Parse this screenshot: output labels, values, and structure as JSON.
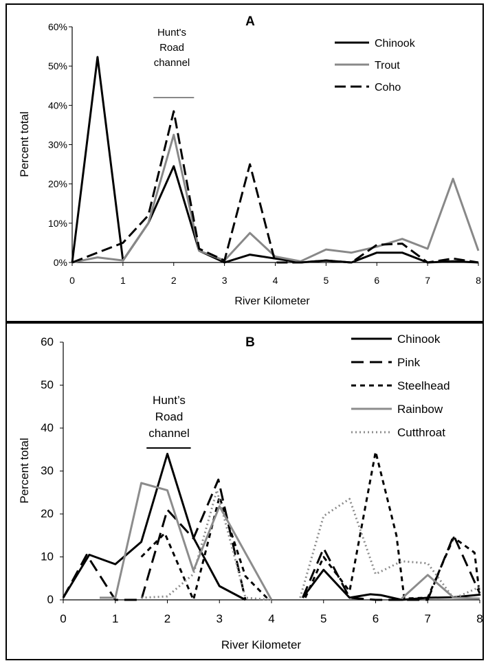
{
  "chart_data": [
    {
      "panel": "A",
      "type": "line",
      "xlabel": "River Kilometer",
      "ylabel": "Percent total",
      "xlim": [
        0,
        8
      ],
      "ylim": [
        0,
        60
      ],
      "xticks": [
        "0",
        "1",
        "2",
        "3",
        "4",
        "5",
        "6",
        "7",
        "8"
      ],
      "yticks": [
        "0%",
        "10%",
        "20%",
        "30%",
        "40%",
        "50%",
        "60%"
      ],
      "legend_position": "top-right",
      "annotation": [
        "Hunt's",
        "Road",
        "channel"
      ],
      "annotation_range": [
        1.6,
        2.4
      ],
      "series": [
        {
          "name": "Chinook",
          "color": "#000000",
          "style": "solid",
          "points": [
            [
              0,
              0
            ],
            [
              0.5,
              52.3
            ],
            [
              1,
              0.5
            ],
            [
              1.5,
              10
            ],
            [
              2,
              24.5
            ],
            [
              2.5,
              3
            ],
            [
              3,
              0
            ],
            [
              3.5,
              2
            ],
            [
              4,
              1
            ],
            [
              4.5,
              0
            ],
            [
              5,
              0.5
            ],
            [
              5.5,
              0
            ],
            [
              6,
              2.5
            ],
            [
              6.5,
              2.5
            ],
            [
              7,
              0
            ],
            [
              7.5,
              0.3
            ],
            [
              8,
              0
            ]
          ]
        },
        {
          "name": "Trout",
          "color": "#888888",
          "style": "solid",
          "points": [
            [
              0,
              0
            ],
            [
              0.5,
              1.3
            ],
            [
              1,
              0.5
            ],
            [
              1.5,
              10
            ],
            [
              2,
              32.5
            ],
            [
              2.5,
              3
            ],
            [
              3,
              0.5
            ],
            [
              3.5,
              7.5
            ],
            [
              4,
              1.5
            ],
            [
              4.5,
              0.3
            ],
            [
              5,
              3.3
            ],
            [
              5.5,
              2.5
            ],
            [
              6,
              4
            ],
            [
              6.5,
              6
            ],
            [
              7,
              3.5
            ],
            [
              7.5,
              21.3
            ],
            [
              8,
              3
            ]
          ]
        },
        {
          "name": "Coho",
          "color": "#000000",
          "style": "dash",
          "points": [
            [
              0,
              0
            ],
            [
              0.5,
              2.5
            ],
            [
              1,
              5
            ],
            [
              1.5,
              12
            ],
            [
              2,
              38.5
            ],
            [
              2.5,
              3.5
            ],
            [
              3,
              0.5
            ],
            [
              3.5,
              25
            ],
            [
              4,
              0
            ],
            [
              4.5,
              0
            ],
            [
              5,
              0.5
            ],
            [
              5.5,
              0
            ],
            [
              6,
              4.5
            ],
            [
              6.5,
              4.8
            ],
            [
              7,
              0
            ],
            [
              7.5,
              1
            ],
            [
              8,
              0
            ]
          ]
        }
      ]
    },
    {
      "panel": "B",
      "type": "line",
      "xlabel": "River Kilometer",
      "ylabel": "Percent total",
      "xlim": [
        0,
        8
      ],
      "ylim": [
        0,
        60
      ],
      "xticks": [
        "0",
        "1",
        "2",
        "3",
        "4",
        "5",
        "6",
        "7",
        "8"
      ],
      "yticks": [
        "0",
        "10",
        "20",
        "30",
        "40",
        "50",
        "60"
      ],
      "legend_position": "top-right",
      "annotation": [
        "Hunt’s",
        "Road",
        "channel"
      ],
      "annotation_range": [
        1.6,
        2.45
      ],
      "series": [
        {
          "name": "Chinook",
          "color": "#000000",
          "style": "solid",
          "segments": [
            [
              [
                0,
                0.5
              ],
              [
                0.5,
                10.5
              ],
              [
                1,
                8.3
              ],
              [
                1.5,
                13.5
              ],
              [
                2,
                34
              ],
              [
                2.5,
                14.5
              ],
              [
                3,
                3.2
              ],
              [
                3.5,
                0
              ]
            ],
            [
              [
                4.6,
                0.5
              ],
              [
                5,
                7
              ],
              [
                5.5,
                0.5
              ],
              [
                5.9,
                1.3
              ],
              [
                6.1,
                1.1
              ],
              [
                6.5,
                0
              ],
              [
                7,
                0.5
              ],
              [
                7.5,
                0.6
              ],
              [
                8,
                1.2
              ]
            ]
          ]
        },
        {
          "name": "Pink",
          "color": "#000000",
          "style": "longdash",
          "segments": [
            [
              [
                0,
                0.5
              ],
              [
                0.45,
                10.5
              ],
              [
                1,
                0
              ],
              [
                1.5,
                0
              ],
              [
                2,
                21
              ],
              [
                2.5,
                14.3
              ],
              [
                2.98,
                28
              ],
              [
                3.5,
                0
              ]
            ],
            [
              [
                4.6,
                0.5
              ],
              [
                5,
                12
              ],
              [
                5.5,
                0.5
              ],
              [
                6,
                0
              ],
              [
                6.5,
                0
              ],
              [
                7,
                0
              ],
              [
                7.5,
                15
              ],
              [
                8,
                1.5
              ]
            ]
          ]
        },
        {
          "name": "Steelhead",
          "color": "#000000",
          "style": "shortdash",
          "segments": [
            [
              [
                1.5,
                10
              ],
              [
                1.95,
                15.5
              ],
              [
                2.5,
                0
              ],
              [
                3,
                24
              ],
              [
                3.5,
                5.5
              ],
              [
                3.95,
                0
              ]
            ],
            [
              [
                4.65,
                0.5
              ],
              [
                5,
                10
              ],
              [
                5.5,
                2
              ],
              [
                6,
                34.5
              ],
              [
                6.4,
                15
              ],
              [
                6.55,
                0.3
              ],
              [
                7,
                0.5
              ],
              [
                7.5,
                14.5
              ],
              [
                7.9,
                11
              ],
              [
                8,
                1
              ]
            ]
          ]
        },
        {
          "name": "Rainbow",
          "color": "#8c8c8c",
          "style": "solid",
          "segments": [
            [
              [
                0.7,
                0.5
              ],
              [
                1,
                0.5
              ],
              [
                1.5,
                27.2
              ],
              [
                2,
                25.5
              ],
              [
                2.5,
                6.8
              ],
              [
                3,
                21.8
              ],
              [
                4,
                0
              ]
            ],
            [
              [
                6.5,
                0.3
              ],
              [
                7,
                5.8
              ],
              [
                7.5,
                0.5
              ],
              [
                8,
                0.3
              ]
            ]
          ]
        },
        {
          "name": "Cutthroat",
          "color": "#8c8c8c",
          "style": "dot",
          "segments": [
            [
              [
                1.5,
                0.5
              ],
              [
                2,
                0.8
              ],
              [
                2.5,
                6
              ],
              [
                2.95,
                25.5
              ],
              [
                3.5,
                0.5
              ],
              [
                4,
                0
              ]
            ],
            [
              [
                4.55,
                0.5
              ],
              [
                5,
                19.5
              ],
              [
                5.5,
                23.5
              ],
              [
                6,
                6
              ],
              [
                6.5,
                9
              ],
              [
                7,
                8.5
              ],
              [
                7.5,
                0.3
              ],
              [
                8,
                3
              ]
            ]
          ]
        }
      ]
    }
  ]
}
